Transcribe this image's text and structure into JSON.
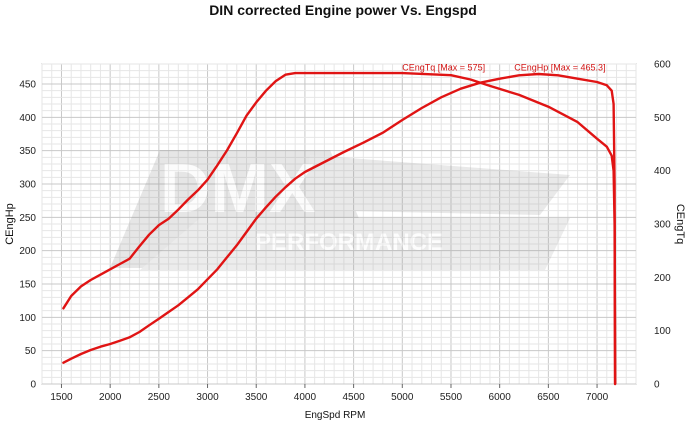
{
  "chart_data": {
    "type": "line",
    "title": "DIN corrected Engine power Vs. Engspd",
    "xlabel": "EngSpd RPM",
    "ylabel_left": "CEngHp",
    "ylabel_right": "CEngTq",
    "xlim": [
      1300,
      7400
    ],
    "xticks": [
      1500,
      2000,
      2500,
      3000,
      3500,
      4000,
      4500,
      5000,
      5500,
      6000,
      6500,
      7000
    ],
    "ylim_left": [
      0,
      480
    ],
    "yticks_left": [
      0,
      50,
      100,
      150,
      200,
      250,
      300,
      350,
      400,
      450
    ],
    "ylim_right": [
      0,
      600
    ],
    "yticks_right": [
      0,
      100,
      200,
      300,
      400,
      500,
      600
    ],
    "grid": true,
    "line_color": "#e01414",
    "series": [
      {
        "name": "CEngHp",
        "axis": "left",
        "x": [
          1520,
          1600,
          1700,
          1800,
          1900,
          2000,
          2100,
          2200,
          2300,
          2400,
          2500,
          2600,
          2700,
          2800,
          2900,
          3000,
          3100,
          3200,
          3300,
          3400,
          3500,
          3600,
          3700,
          3800,
          3900,
          4000,
          4200,
          4400,
          4600,
          4800,
          5000,
          5200,
          5400,
          5600,
          5800,
          6000,
          6200,
          6400,
          6600,
          6800,
          7000,
          7100,
          7150,
          7170,
          7180,
          7185
        ],
        "values": [
          32,
          38,
          45,
          51,
          56,
          60,
          65,
          70,
          78,
          88,
          98,
          108,
          118,
          130,
          142,
          157,
          172,
          190,
          208,
          228,
          248,
          265,
          281,
          295,
          308,
          318,
          333,
          348,
          362,
          377,
          396,
          414,
          430,
          443,
          452,
          458,
          463,
          465,
          463,
          458,
          453,
          448,
          440,
          420,
          300,
          0
        ]
      },
      {
        "name": "CEngTq",
        "axis": "right",
        "x": [
          1520,
          1600,
          1700,
          1800,
          1900,
          2000,
          2100,
          2200,
          2300,
          2400,
          2500,
          2600,
          2700,
          2800,
          2900,
          3000,
          3100,
          3200,
          3300,
          3400,
          3500,
          3600,
          3700,
          3800,
          3900,
          4000,
          4200,
          4500,
          5000,
          5500,
          5700,
          5900,
          6200,
          6500,
          6800,
          7000,
          7100,
          7150,
          7170,
          7180,
          7185
        ],
        "values": [
          142,
          165,
          183,
          195,
          205,
          215,
          225,
          235,
          258,
          280,
          298,
          310,
          327,
          346,
          363,
          383,
          410,
          438,
          470,
          503,
          528,
          550,
          568,
          580,
          583,
          583,
          583,
          583,
          583,
          579,
          571,
          559,
          542,
          520,
          491,
          460,
          445,
          428,
          400,
          300,
          0
        ]
      }
    ],
    "annotations": [
      {
        "text": "CEngTq [Max = 575]",
        "x": 5000,
        "y_left": 470
      },
      {
        "text": "CEngHp [Max = 465.3]",
        "x": 6150,
        "y_left": 470
      }
    ],
    "watermark": {
      "big": "DMX",
      "small": "PERFORMANCE"
    }
  }
}
